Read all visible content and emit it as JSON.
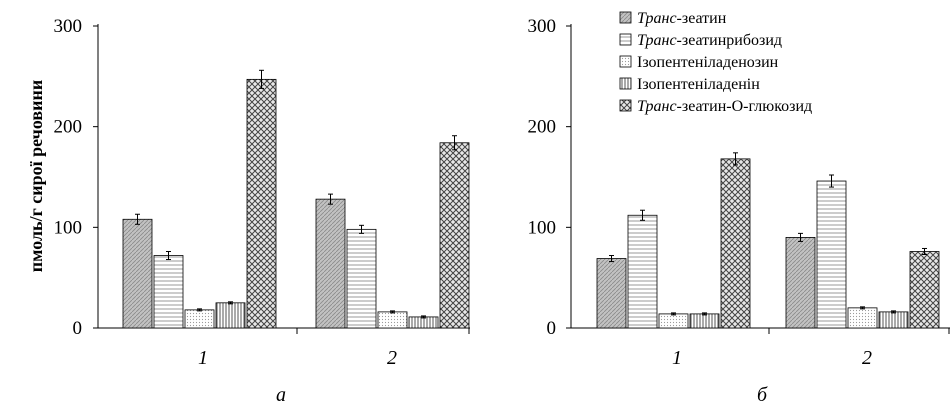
{
  "y_axis_label": "пмоль/г сирої речовини",
  "legend": [
    {
      "prefix": "Транс",
      "suffix": "-зеатин",
      "pattern": "p0"
    },
    {
      "prefix": "Транс",
      "suffix": "-зеатинрибозид",
      "pattern": "p1"
    },
    {
      "prefix": "",
      "suffix": "Ізопентеніладенозин",
      "pattern": "p2"
    },
    {
      "prefix": "",
      "suffix": "Ізопентеніладенін",
      "pattern": "p3"
    },
    {
      "prefix": "Транс",
      "suffix": "-зеатин-О-глюкозид",
      "pattern": "p4"
    }
  ],
  "chart_data": [
    {
      "type": "bar",
      "panel_label": "а",
      "categories": [
        "1",
        "2"
      ],
      "ylim": [
        0,
        300
      ],
      "yticks": [
        "0",
        "100",
        "200",
        "300"
      ],
      "series": [
        {
          "name": "Транс-зеатин",
          "values": [
            108,
            128
          ],
          "errors": [
            5,
            5
          ]
        },
        {
          "name": "Транс-зеатинрибозид",
          "values": [
            72,
            98
          ],
          "errors": [
            4,
            4
          ]
        },
        {
          "name": "Ізопентеніладенозин",
          "values": [
            18,
            16
          ],
          "errors": [
            1,
            1
          ]
        },
        {
          "name": "Ізопентеніладенін",
          "values": [
            25,
            11
          ],
          "errors": [
            1,
            1
          ]
        },
        {
          "name": "Транс-зеатин-О-глюкозид",
          "values": [
            247,
            184
          ],
          "errors": [
            9,
            7
          ]
        }
      ]
    },
    {
      "type": "bar",
      "panel_label": "б",
      "categories": [
        "1",
        "2"
      ],
      "ylim": [
        0,
        300
      ],
      "yticks": [
        "0",
        "100",
        "200",
        "300"
      ],
      "series": [
        {
          "name": "Транс-зеатин",
          "values": [
            69,
            90
          ],
          "errors": [
            3,
            4
          ]
        },
        {
          "name": "Транс-зеатинрибозид",
          "values": [
            112,
            146
          ],
          "errors": [
            5,
            6
          ]
        },
        {
          "name": "Ізопентеніладенозин",
          "values": [
            14,
            20
          ],
          "errors": [
            1,
            1
          ]
        },
        {
          "name": "Ізопентеніладенін",
          "values": [
            14,
            16
          ],
          "errors": [
            1,
            1
          ]
        },
        {
          "name": "Транс-зеатин-О-глюкозид",
          "values": [
            168,
            76
          ],
          "errors": [
            6,
            3
          ]
        }
      ]
    }
  ]
}
